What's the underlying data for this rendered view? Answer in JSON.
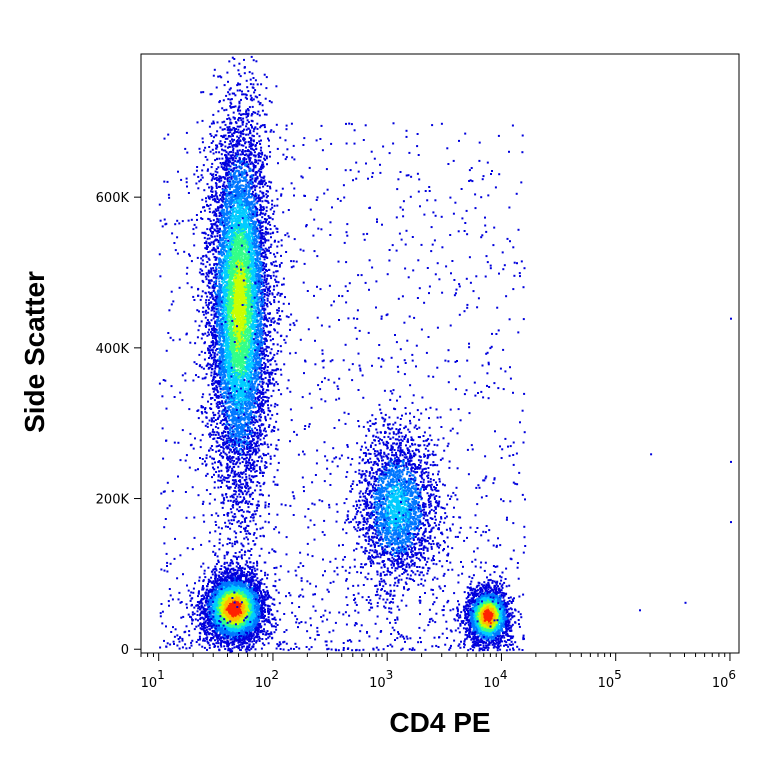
{
  "chart_data": {
    "type": "scatter",
    "subtype": "flow-cytometry-density-dot-plot",
    "title": "",
    "xlabel": "CD4 PE",
    "ylabel": "Side Scatter",
    "x_scale": "log",
    "xlim": [
      7,
      1200000
    ],
    "ylim": [
      -5000,
      790000
    ],
    "x_ticks": [
      {
        "base": "10",
        "exp": "1",
        "value": 10
      },
      {
        "base": "10",
        "exp": "2",
        "value": 100
      },
      {
        "base": "10",
        "exp": "3",
        "value": 1000
      },
      {
        "base": "10",
        "exp": "4",
        "value": 10000
      },
      {
        "base": "10",
        "exp": "5",
        "value": 100000
      },
      {
        "base": "10",
        "exp": "6",
        "value": 1000000
      }
    ],
    "y_ticks": [
      {
        "label": "0",
        "value": 0
      },
      {
        "label": "200K",
        "value": 200000
      },
      {
        "label": "400K",
        "value": 400000
      },
      {
        "label": "600K",
        "value": 600000
      }
    ],
    "grid": false,
    "legend": "none",
    "density_colors": [
      "#0000dd",
      "#0077ff",
      "#00ccff",
      "#33ff88",
      "#ccff00",
      "#ffbb00",
      "#ff2200"
    ],
    "populations": [
      {
        "center_x": 50,
        "center_y": 460000,
        "x_spread_log10": 0.13,
        "y_spread": 120000,
        "points": 9000,
        "peak_density": 0.65
      },
      {
        "center_x": 45,
        "center_y": 55000,
        "x_spread_log10": 0.13,
        "y_spread": 22000,
        "points": 5000,
        "peak_density": 1.0
      },
      {
        "center_x": 1200,
        "center_y": 190000,
        "x_spread_log10": 0.17,
        "y_spread": 50000,
        "points": 2600,
        "peak_density": 0.35
      },
      {
        "center_x": 7500,
        "center_y": 45000,
        "x_spread_log10": 0.09,
        "y_spread": 18000,
        "points": 2600,
        "peak_density": 1.0
      }
    ]
  }
}
